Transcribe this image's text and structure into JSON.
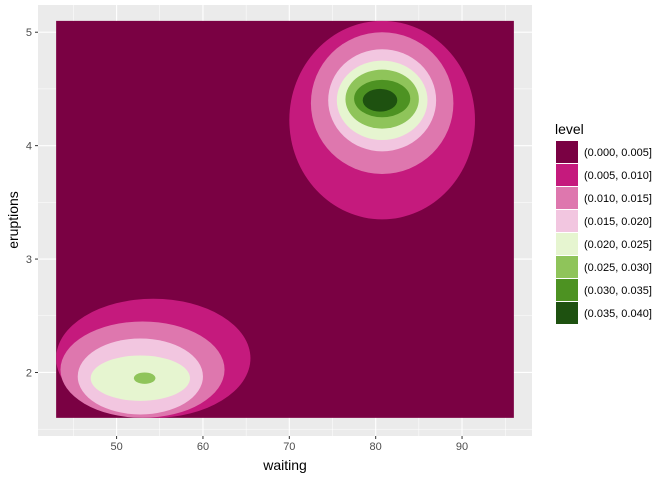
{
  "chart_data": {
    "type": "heatmap",
    "subtype": "filled-density-contour",
    "xlabel": "waiting",
    "ylabel": "eruptions",
    "x_ticks": [
      50,
      60,
      70,
      80,
      90
    ],
    "y_ticks": [
      2,
      3,
      4,
      5
    ],
    "xlim": [
      40.9,
      98.1
    ],
    "ylim": [
      1.44,
      5.24
    ],
    "data_extent": {
      "x": [
        43,
        96
      ],
      "y": [
        1.6,
        5.1
      ]
    },
    "grid": true,
    "legend": {
      "title": "level",
      "position": "right",
      "entries": [
        {
          "label": "(0.000, 0.005]",
          "color": "#7A0143"
        },
        {
          "label": "(0.005, 0.010]",
          "color": "#C51A7D"
        },
        {
          "label": "(0.010, 0.015]",
          "color": "#DE77AE"
        },
        {
          "label": "(0.015, 0.020]",
          "color": "#F2C6E0"
        },
        {
          "label": "(0.020, 0.025]",
          "color": "#E6F5D0"
        },
        {
          "label": "(0.025, 0.030]",
          "color": "#8FC45A"
        },
        {
          "label": "(0.030, 0.035]",
          "color": "#4D9222"
        },
        {
          "label": "(0.035, 0.040]",
          "color": "#1E5110"
        }
      ]
    },
    "clusters": [
      {
        "center": [
          80.5,
          4.4
        ],
        "levels": [
          {
            "level": 1,
            "x": [
              70.0,
              91.5
            ],
            "y": [
              3.35,
              5.1
            ]
          },
          {
            "level": 2,
            "x": [
              72.5,
              89.0
            ],
            "y": [
              3.75,
              5.0
            ]
          },
          {
            "level": 3,
            "x": [
              74.5,
              87.0
            ],
            "y": [
              3.95,
              4.85
            ]
          },
          {
            "level": 4,
            "x": [
              75.5,
              86.0
            ],
            "y": [
              4.05,
              4.75
            ]
          },
          {
            "level": 5,
            "x": [
              76.5,
              85.0
            ],
            "y": [
              4.15,
              4.67
            ]
          },
          {
            "level": 6,
            "x": [
              77.5,
              84.0
            ],
            "y": [
              4.25,
              4.58
            ]
          },
          {
            "level": 7,
            "x": [
              78.5,
              82.5
            ],
            "y": [
              4.3,
              4.5
            ]
          }
        ]
      },
      {
        "center": [
          53,
          1.95
        ],
        "levels": [
          {
            "level": 1,
            "x": [
              43,
              65.5
            ],
            "y": [
              1.6,
              2.65
            ]
          },
          {
            "level": 2,
            "x": [
              43.5,
              62.5
            ],
            "y": [
              1.6,
              2.45
            ]
          },
          {
            "level": 3,
            "x": [
              45.5,
              60.0
            ],
            "y": [
              1.63,
              2.3
            ]
          },
          {
            "level": 4,
            "x": [
              47.0,
              58.5
            ],
            "y": [
              1.75,
              2.15
            ]
          },
          {
            "level": 5,
            "x": [
              52,
              54.5
            ],
            "y": [
              1.9,
              2.0
            ]
          }
        ]
      }
    ]
  }
}
